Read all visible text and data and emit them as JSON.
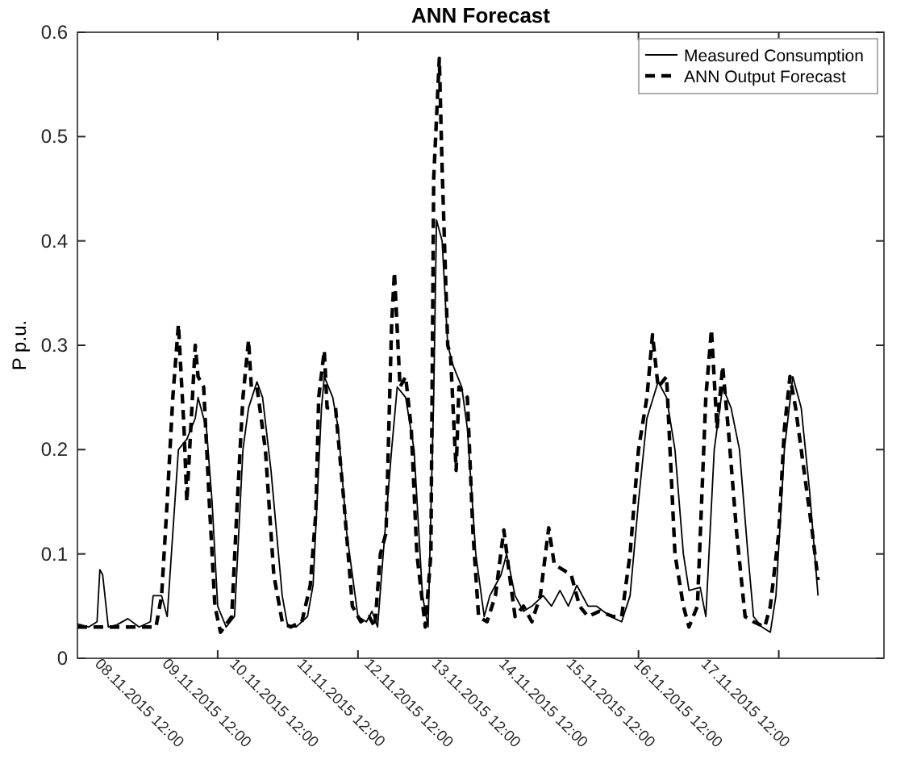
{
  "chart_data": {
    "type": "line",
    "title": "ANN Forecast",
    "ylabel": "P p.u.",
    "xlim": [
      "2015-11-08T06:00",
      "2015-11-20T05:30"
    ],
    "ylim": [
      0,
      0.6
    ],
    "xticks": [
      {
        "value": "2015-11-08T12:00",
        "label": "08.11.2015 12:00"
      },
      {
        "value": "2015-11-09T12:00",
        "label": "09.11.2015 12:00"
      },
      {
        "value": "2015-11-10T08:00",
        "label": null
      },
      {
        "value": "2015-11-10T12:00",
        "label": "10.11.2015 12:00"
      },
      {
        "value": "2015-11-11T12:00",
        "label": "11.11.2015 12:00"
      },
      {
        "value": "2015-11-12T10:00",
        "label": null
      },
      {
        "value": "2015-11-12T12:00",
        "label": "12.11.2015 12:00"
      },
      {
        "value": "2015-11-13T12:00",
        "label": "13.11.2015 12:00"
      },
      {
        "value": "2015-11-14T12:00",
        "label": "14.11.2015 12:00"
      },
      {
        "value": "2015-11-15T12:00",
        "label": "15.11.2015 12:00"
      },
      {
        "value": "2015-11-16T12:00",
        "label": "16.11.2015 12:00"
      },
      {
        "value": "2015-11-16T14:00",
        "label": null
      },
      {
        "value": "2015-11-17T12:00",
        "label": "17.11.2015 12:00"
      },
      {
        "value": "2015-11-18T16:00",
        "label": null
      }
    ],
    "yticks": [
      0,
      0.1,
      0.2,
      0.3,
      0.4,
      0.5,
      0.6
    ],
    "legend": "top right",
    "series": [
      {
        "name": "Measured Consumption",
        "color": "#000000",
        "line_style": "solid",
        "x": [
          "2015-11-08T06:00",
          "2015-11-08T10:00",
          "2015-11-08T13:00",
          "2015-11-08T14:00",
          "2015-11-08T15:00",
          "2015-11-08T17:00",
          "2015-11-08T20:00",
          "2015-11-09T00:00",
          "2015-11-09T04:00",
          "2015-11-09T08:00",
          "2015-11-09T09:00",
          "2015-11-09T12:00",
          "2015-11-09T14:00",
          "2015-11-09T16:00",
          "2015-11-09T18:00",
          "2015-11-09T21:00",
          "2015-11-10T00:00",
          "2015-11-10T01:00",
          "2015-11-10T04:00",
          "2015-11-10T06:00",
          "2015-11-10T08:00",
          "2015-11-10T11:00",
          "2015-11-10T14:00",
          "2015-11-10T17:00",
          "2015-11-10T19:00",
          "2015-11-10T22:00",
          "2015-11-11T00:00",
          "2015-11-11T03:00",
          "2015-11-11T07:00",
          "2015-11-11T09:00",
          "2015-11-11T12:00",
          "2015-11-11T16:00",
          "2015-11-11T18:00",
          "2015-11-11T21:00",
          "2015-11-11T22:00",
          "2015-11-12T01:00",
          "2015-11-12T03:00",
          "2015-11-12T06:00",
          "2015-11-12T10:00",
          "2015-11-12T13:00",
          "2015-11-12T15:00",
          "2015-11-12T17:00",
          "2015-11-12T19:00",
          "2015-11-12T22:00",
          "2015-11-13T00:00",
          "2015-11-13T03:00",
          "2015-11-13T06:00",
          "2015-11-13T09:00",
          "2015-11-13T11:00",
          "2015-11-13T13:00",
          "2015-11-13T14:00",
          "2015-11-13T16:00",
          "2015-11-13T18:00",
          "2015-11-13T20:00",
          "2015-11-13T23:00",
          "2015-11-14T01:00",
          "2015-11-14T04:00",
          "2015-11-14T07:00",
          "2015-11-14T09:00",
          "2015-11-14T13:00",
          "2015-11-14T15:00",
          "2015-11-14T18:00",
          "2015-11-14T21:00",
          "2015-11-15T00:00",
          "2015-11-15T04:00",
          "2015-11-15T07:00",
          "2015-11-15T10:00",
          "2015-11-15T13:00",
          "2015-11-15T16:00",
          "2015-11-15T20:00",
          "2015-11-15T23:00",
          "2015-11-16T04:00",
          "2015-11-16T08:00",
          "2015-11-16T11:00",
          "2015-11-16T14:00",
          "2015-11-16T17:00",
          "2015-11-16T21:00",
          "2015-11-17T00:00",
          "2015-11-17T03:00",
          "2015-11-17T06:00",
          "2015-11-17T08:00",
          "2015-11-17T12:00",
          "2015-11-17T14:00",
          "2015-11-17T17:00",
          "2015-11-17T20:00",
          "2015-11-17T23:00",
          "2015-11-18T02:00",
          "2015-11-18T05:00",
          "2015-11-18T07:00",
          "2015-11-18T10:00",
          "2015-11-18T13:00",
          "2015-11-18T15:00",
          "2015-11-18T18:00",
          "2015-11-18T21:00",
          "2015-11-19T00:00",
          "2015-11-19T03:00",
          "2015-11-19T06:00"
        ],
        "values": [
          0.033,
          0.03,
          0.035,
          0.085,
          0.08,
          0.03,
          0.032,
          0.038,
          0.03,
          0.035,
          0.06,
          0.06,
          0.04,
          0.12,
          0.2,
          0.21,
          0.23,
          0.25,
          0.22,
          0.15,
          0.05,
          0.03,
          0.04,
          0.2,
          0.24,
          0.265,
          0.25,
          0.18,
          0.06,
          0.03,
          0.03,
          0.04,
          0.07,
          0.24,
          0.27,
          0.25,
          0.22,
          0.12,
          0.04,
          0.035,
          0.045,
          0.03,
          0.1,
          0.2,
          0.26,
          0.25,
          0.2,
          0.06,
          0.03,
          0.25,
          0.42,
          0.4,
          0.3,
          0.28,
          0.26,
          0.22,
          0.1,
          0.04,
          0.06,
          0.08,
          0.1,
          0.06,
          0.045,
          0.05,
          0.06,
          0.05,
          0.065,
          0.05,
          0.07,
          0.05,
          0.05,
          0.04,
          0.035,
          0.06,
          0.15,
          0.23,
          0.265,
          0.25,
          0.2,
          0.1,
          0.065,
          0.068,
          0.04,
          0.2,
          0.26,
          0.24,
          0.2,
          0.1,
          0.04,
          0.03,
          0.025,
          0.06,
          0.2,
          0.27,
          0.24,
          0.16,
          0.06
        ]
      },
      {
        "name": "ANN Output Forecast",
        "color": "#000000",
        "line_style": "dashed",
        "x": [
          "2015-11-08T06:00",
          "2015-11-08T16:00",
          "2015-11-08T21:00",
          "2015-11-09T04:00",
          "2015-11-09T08:00",
          "2015-11-09T10:00",
          "2015-11-09T12:00",
          "2015-11-09T14:00",
          "2015-11-09T16:00",
          "2015-11-09T18:00",
          "2015-11-09T20:00",
          "2015-11-09T21:00",
          "2015-11-09T22:00",
          "2015-11-10T00:00",
          "2015-11-10T01:00",
          "2015-11-10T03:00",
          "2015-11-10T05:00",
          "2015-11-10T07:00",
          "2015-11-10T09:00",
          "2015-11-10T13:00",
          "2015-11-10T15:00",
          "2015-11-10T17:00",
          "2015-11-10T19:00",
          "2015-11-10T20:00",
          "2015-11-10T22:00",
          "2015-11-11T01:00",
          "2015-11-11T04:00",
          "2015-11-11T07:00",
          "2015-11-11T10:00",
          "2015-11-11T14:00",
          "2015-11-11T17:00",
          "2015-11-11T19:00",
          "2015-11-11T20:00",
          "2015-11-11T22:00",
          "2015-11-11T23:00",
          "2015-11-12T02:00",
          "2015-11-12T05:00",
          "2015-11-12T08:00",
          "2015-11-12T11:00",
          "2015-11-12T14:00",
          "2015-11-12T16:00",
          "2015-11-12T18:00",
          "2015-11-12T20:00",
          "2015-11-12T22:00",
          "2015-11-12T23:00",
          "2015-11-13T01:00",
          "2015-11-13T03:00",
          "2015-11-13T05:00",
          "2015-11-13T07:00",
          "2015-11-13T10:00",
          "2015-11-13T12:00",
          "2015-11-13T13:00",
          "2015-11-13T15:00",
          "2015-11-13T16:00",
          "2015-11-13T18:00",
          "2015-11-13T19:00",
          "2015-11-13T21:00",
          "2015-11-13T22:00",
          "2015-11-14T01:00",
          "2015-11-14T03:00",
          "2015-11-14T05:00",
          "2015-11-14T08:00",
          "2015-11-14T11:00",
          "2015-11-14T14:00",
          "2015-11-14T16:00",
          "2015-11-14T18:00",
          "2015-11-14T21:00",
          "2015-11-15T00:00",
          "2015-11-15T03:00",
          "2015-11-15T06:00",
          "2015-11-15T08:00",
          "2015-11-15T11:00",
          "2015-11-15T14:00",
          "2015-11-15T17:00",
          "2015-11-15T20:00",
          "2015-11-16T00:00",
          "2015-11-16T05:00",
          "2015-11-16T08:00",
          "2015-11-16T11:00",
          "2015-11-16T14:00",
          "2015-11-16T17:00",
          "2015-11-16T19:00",
          "2015-11-16T21:00",
          "2015-11-17T00:00",
          "2015-11-17T03:00",
          "2015-11-17T06:00",
          "2015-11-17T08:00",
          "2015-11-17T11:00",
          "2015-11-17T14:00",
          "2015-11-17T16:00",
          "2015-11-17T18:00",
          "2015-11-17T20:00",
          "2015-11-17T22:00",
          "2015-11-18T01:00",
          "2015-11-18T04:00",
          "2015-11-18T07:00",
          "2015-11-18T11:00",
          "2015-11-18T13:00",
          "2015-11-18T16:00",
          "2015-11-18T18:00",
          "2015-11-18T20:00",
          "2015-11-18T22:00",
          "2015-11-19T01:00",
          "2015-11-19T04:00",
          "2015-11-19T06:00"
        ],
        "values": [
          0.03,
          0.03,
          0.03,
          0.03,
          0.03,
          0.03,
          0.06,
          0.15,
          0.25,
          0.32,
          0.22,
          0.15,
          0.2,
          0.3,
          0.27,
          0.26,
          0.15,
          0.05,
          0.025,
          0.04,
          0.15,
          0.25,
          0.305,
          0.26,
          0.26,
          0.2,
          0.08,
          0.035,
          0.03,
          0.035,
          0.07,
          0.14,
          0.25,
          0.295,
          0.24,
          0.24,
          0.15,
          0.05,
          0.035,
          0.04,
          0.03,
          0.1,
          0.12,
          0.32,
          0.37,
          0.26,
          0.27,
          0.22,
          0.1,
          0.03,
          0.1,
          0.46,
          0.575,
          0.47,
          0.3,
          0.29,
          0.18,
          0.26,
          0.25,
          0.12,
          0.04,
          0.035,
          0.06,
          0.123,
          0.08,
          0.04,
          0.05,
          0.035,
          0.06,
          0.125,
          0.09,
          0.085,
          0.08,
          0.05,
          0.04,
          0.045,
          0.04,
          0.04,
          0.1,
          0.2,
          0.25,
          0.31,
          0.26,
          0.27,
          0.1,
          0.05,
          0.03,
          0.05,
          0.25,
          0.315,
          0.22,
          0.28,
          0.22,
          0.12,
          0.04,
          0.035,
          0.03,
          0.05,
          0.12,
          0.22,
          0.27,
          0.24,
          0.18,
          0.12,
          0.075
        ]
      }
    ]
  }
}
